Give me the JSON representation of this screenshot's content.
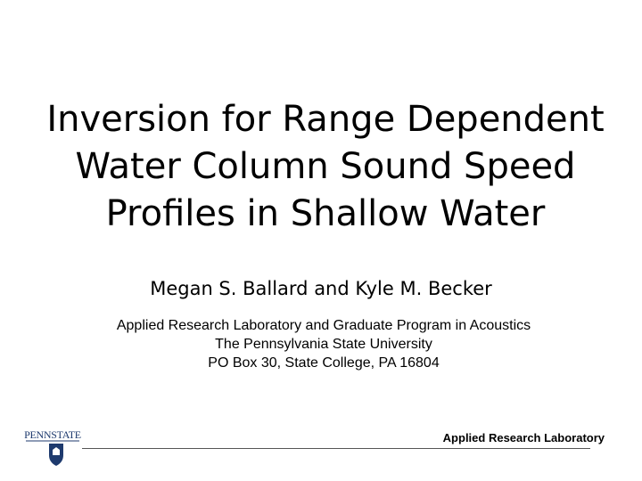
{
  "slide": {
    "title": [
      "Inversion for Range Dependent",
      "Water Column Sound Speed",
      "Profiles in Shallow Water"
    ],
    "authors": "Megan S. Ballard and Kyle M. Becker",
    "affiliation": [
      "Applied Research Laboratory and Graduate Program in Acoustics",
      "The Pennsylvania State University",
      "PO Box 30, State College, PA 16804"
    ],
    "logo": "PENNSTATE",
    "footer": "Applied Research Laboratory"
  }
}
